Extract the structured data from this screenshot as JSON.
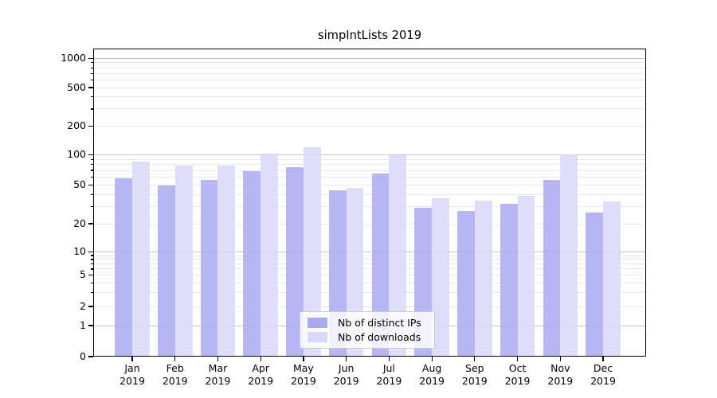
{
  "figure": {
    "background": "#ffffff"
  },
  "chart_data": {
    "type": "bar",
    "title": "simpIntLists 2019",
    "categories": [
      "Jan 2019",
      "Feb 2019",
      "Mar 2019",
      "Apr 2019",
      "May 2019",
      "Jun 2019",
      "Jul 2019",
      "Aug 2019",
      "Sep 2019",
      "Oct 2019",
      "Nov 2019",
      "Dec 2019"
    ],
    "x_tick_months": [
      "Jan",
      "Feb",
      "Mar",
      "Apr",
      "May",
      "Jun",
      "Jul",
      "Aug",
      "Sep",
      "Oct",
      "Nov",
      "Dec"
    ],
    "x_tick_year": "2019",
    "series": [
      {
        "name": "Nb of distinct IPs",
        "color": "#a9a9f1",
        "values": [
          58,
          50,
          56,
          69,
          76,
          44,
          65,
          29,
          27,
          32,
          56,
          26
        ]
      },
      {
        "name": "Nb of downloads",
        "color": "#d8d8f9",
        "values": [
          85,
          78,
          78,
          102,
          119,
          47,
          98,
          37,
          35,
          39,
          101,
          34
        ]
      }
    ],
    "yscale": "symlog",
    "yticks": [
      0,
      1,
      2,
      5,
      10,
      20,
      50,
      100,
      200,
      500,
      1000
    ],
    "ylim": [
      0,
      1200
    ],
    "grid": true,
    "grid_major_color": "#c2c2c2",
    "grid_minor_color": "#e9e9e9",
    "legend_position": "lower-center",
    "legend": [
      "Nb of distinct IPs",
      "Nb of downloads"
    ]
  }
}
